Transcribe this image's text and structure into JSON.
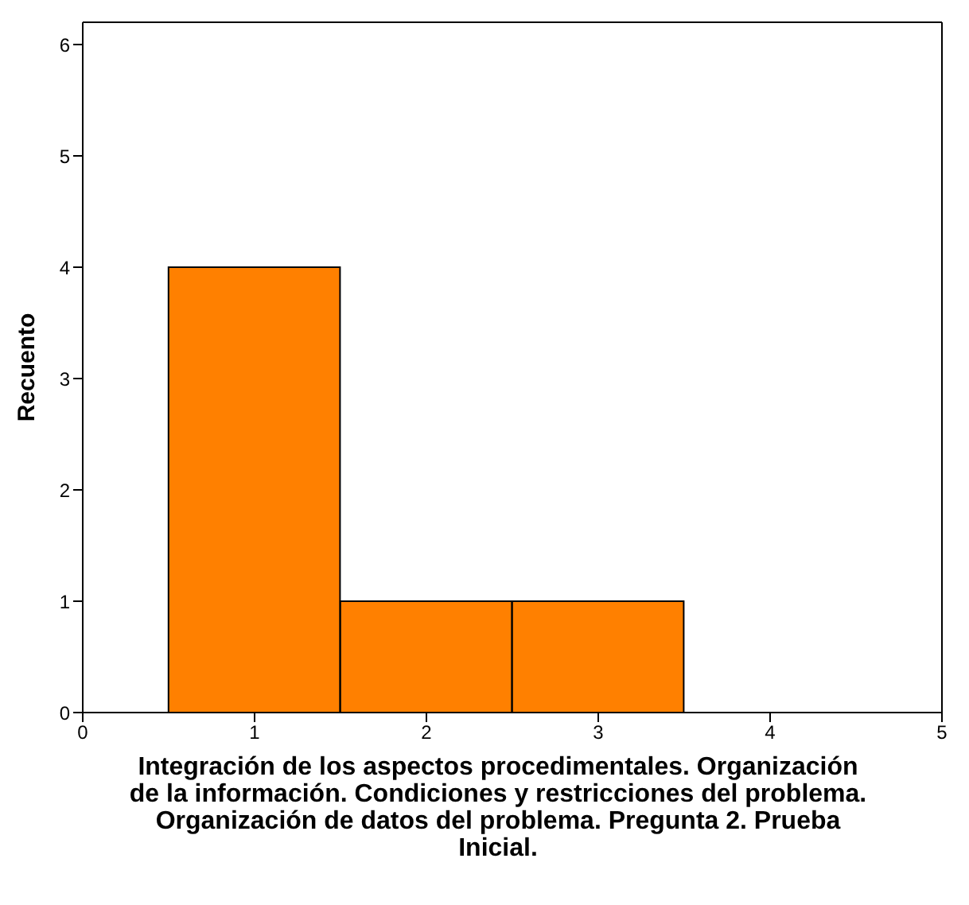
{
  "chart_data": {
    "type": "histogram",
    "xlabel": "Integración de los aspectos procedimentales. Organización de la información. Condiciones y restricciones del problema. Organización de datos del problema. Pregunta 2. Prueba Inicial.",
    "ylabel": "Recuento",
    "bins": [
      0.5,
      1.5,
      2.5,
      3.5
    ],
    "values": [
      4,
      1,
      1
    ],
    "color": "#ff8000",
    "xlim": [
      0,
      5
    ],
    "xticks": [
      0,
      1,
      2,
      3,
      4,
      5
    ],
    "ylim": [
      0,
      6.2
    ],
    "yticks": [
      0,
      1,
      2,
      3,
      4,
      5,
      6
    ],
    "grid": false
  }
}
